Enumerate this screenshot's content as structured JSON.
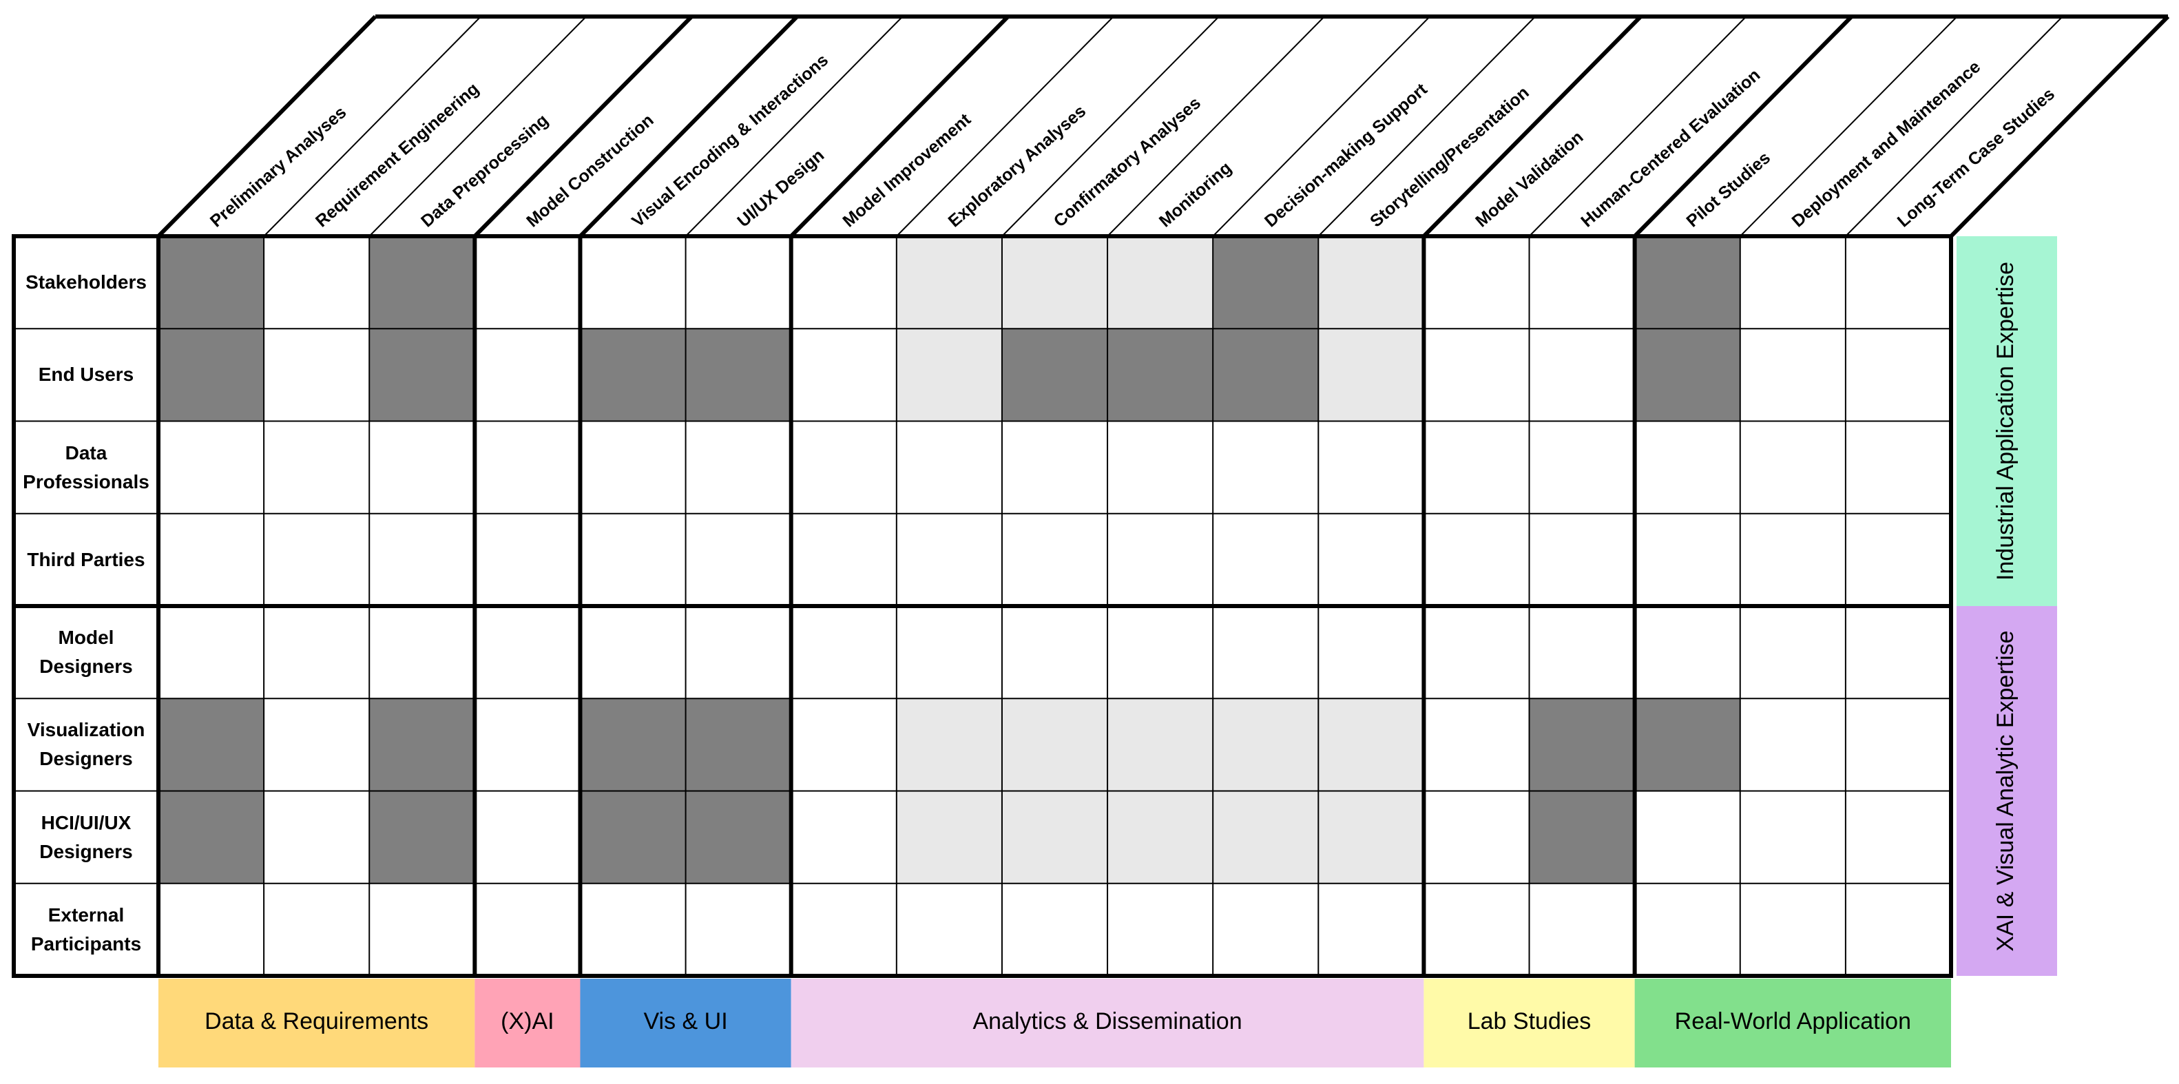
{
  "column_groups": [
    {
      "label": "Data & Requirements",
      "color": "#ffd97a",
      "columns": [
        "Preliminary Analyses",
        "Requirement Engineering",
        "Data Preprocessing"
      ]
    },
    {
      "label": "(X)AI",
      "color": "#ffa3b6",
      "columns": [
        "Model Construction"
      ]
    },
    {
      "label": "Vis & UI",
      "color": "#4d95dc",
      "columns": [
        "Visual Encoding & Interactions",
        "UI/UX Design"
      ]
    },
    {
      "label": "Analytics & Dissemination",
      "color": "#f0cfee",
      "columns": [
        "Model Improvement",
        "Exploratory Analyses",
        "Confirmatory Analyses",
        "Monitoring",
        "Decision-making Support",
        "Storytelling/Presentation"
      ]
    },
    {
      "label": "Lab Studies",
      "color": "#fffaa8",
      "columns": [
        "Model Validation",
        "Human-Centered Evaluation"
      ]
    },
    {
      "label": "Real-World Application",
      "color": "#82e08c",
      "columns": [
        "Pilot Studies",
        "Deployment and Maintenance",
        "Long-Term Case Studies"
      ]
    }
  ],
  "row_groups": [
    {
      "label": "Industrial Application Expertise",
      "color": "#a6f5d3",
      "rows": [
        {
          "label": "Stakeholders",
          "cells": [
            "#808080",
            "#ffffff",
            "#808080",
            "#ffffff",
            "#ffffff",
            "#ffffff",
            "#ffffff",
            "#e8e8e8",
            "#e8e8e8",
            "#e8e8e8",
            "#808080",
            "#e8e8e8",
            "#ffffff",
            "#ffffff",
            "#808080",
            "#ffffff",
            "#ffffff"
          ]
        },
        {
          "label": "End Users",
          "cells": [
            "#808080",
            "#ffffff",
            "#808080",
            "#ffffff",
            "#808080",
            "#808080",
            "#ffffff",
            "#e8e8e8",
            "#808080",
            "#808080",
            "#808080",
            "#e8e8e8",
            "#ffffff",
            "#ffffff",
            "#808080",
            "#ffffff",
            "#ffffff"
          ]
        },
        {
          "label": "Data Professionals",
          "cells": [
            "#ffffff",
            "#ffffff",
            "#ffffff",
            "#ffffff",
            "#ffffff",
            "#ffffff",
            "#ffffff",
            "#ffffff",
            "#ffffff",
            "#ffffff",
            "#ffffff",
            "#ffffff",
            "#ffffff",
            "#ffffff",
            "#ffffff",
            "#ffffff",
            "#ffffff"
          ]
        },
        {
          "label": "Third Parties",
          "cells": [
            "#ffffff",
            "#ffffff",
            "#ffffff",
            "#ffffff",
            "#ffffff",
            "#ffffff",
            "#ffffff",
            "#ffffff",
            "#ffffff",
            "#ffffff",
            "#ffffff",
            "#ffffff",
            "#ffffff",
            "#ffffff",
            "#ffffff",
            "#ffffff",
            "#ffffff"
          ]
        }
      ]
    },
    {
      "label": "XAI & Visual Analytic Expertise",
      "color": "#d4a8f2",
      "rows": [
        {
          "label": "Model Designers",
          "cells": [
            "#ffffff",
            "#ffffff",
            "#ffffff",
            "#ffffff",
            "#ffffff",
            "#ffffff",
            "#ffffff",
            "#ffffff",
            "#ffffff",
            "#ffffff",
            "#ffffff",
            "#ffffff",
            "#ffffff",
            "#ffffff",
            "#ffffff",
            "#ffffff",
            "#ffffff"
          ]
        },
        {
          "label": "Visualization Designers",
          "cells": [
            "#808080",
            "#ffffff",
            "#808080",
            "#ffffff",
            "#808080",
            "#808080",
            "#ffffff",
            "#e8e8e8",
            "#e8e8e8",
            "#e8e8e8",
            "#e8e8e8",
            "#e8e8e8",
            "#ffffff",
            "#808080",
            "#808080",
            "#ffffff",
            "#ffffff"
          ]
        },
        {
          "label": "HCI/UI/UX Designers",
          "cells": [
            "#808080",
            "#ffffff",
            "#808080",
            "#ffffff",
            "#808080",
            "#808080",
            "#ffffff",
            "#e8e8e8",
            "#e8e8e8",
            "#e8e8e8",
            "#e8e8e8",
            "#e8e8e8",
            "#ffffff",
            "#808080",
            "#ffffff",
            "#ffffff",
            "#ffffff"
          ]
        },
        {
          "label": "External Participants",
          "cells": [
            "#ffffff",
            "#ffffff",
            "#ffffff",
            "#ffffff",
            "#ffffff",
            "#ffffff",
            "#ffffff",
            "#ffffff",
            "#ffffff",
            "#ffffff",
            "#ffffff",
            "#ffffff",
            "#ffffff",
            "#ffffff",
            "#ffffff",
            "#ffffff",
            "#ffffff"
          ]
        }
      ]
    }
  ]
}
